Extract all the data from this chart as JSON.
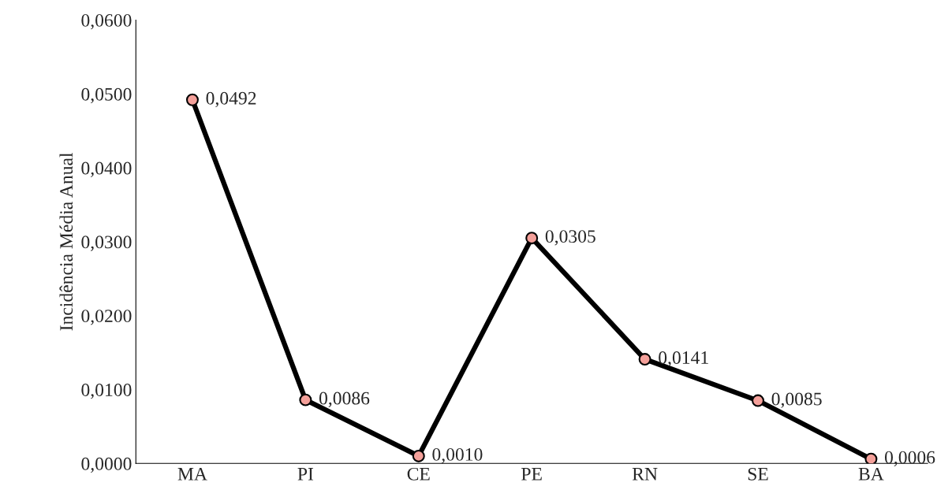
{
  "chart_data": {
    "type": "line",
    "ylabel": "Incidência Média Anual",
    "categories": [
      "MA",
      "PI",
      "CE",
      "PE",
      "RN",
      "SE",
      "BA"
    ],
    "series": [
      {
        "color": "#000000",
        "values": [
          0.0492,
          0.0086,
          0.001,
          0.0305,
          0.0141,
          0.0085,
          0.0006
        ],
        "value_labels": [
          "0,0492",
          "0,0086",
          "0,0010",
          "0,0305",
          "0,0141",
          "0,0085",
          "0,0006"
        ]
      }
    ],
    "ylim": [
      0,
      0.06
    ],
    "yticks": [
      {
        "value": 0,
        "label": "0,0000"
      },
      {
        "value": 0.01,
        "label": "0,0100"
      },
      {
        "value": 0.02,
        "label": "0,0200"
      },
      {
        "value": 0.03,
        "label": "0,0300"
      },
      {
        "value": 0.04,
        "label": "0,0400"
      },
      {
        "value": 0.05,
        "label": "0,0500"
      },
      {
        "value": 0.06,
        "label": "0,0600"
      }
    ],
    "marker": "circle",
    "line_style": "solid",
    "grid": false,
    "legend": false
  }
}
